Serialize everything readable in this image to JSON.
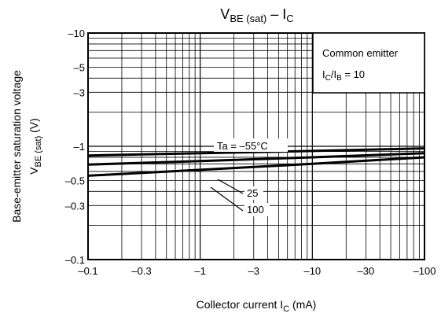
{
  "chart_data": {
    "type": "line",
    "title": {
      "main": "V",
      "sub1": "BE (sat)",
      "mid": " – I",
      "sub2": "C"
    },
    "xlabel": {
      "main": "Collector current   I",
      "sub": "C",
      "unit": "   (mA)"
    },
    "ylabel": {
      "line1": "Base-emitter saturation voltage",
      "main": "V",
      "sub": "BE (sat)",
      "unit": "   (V)"
    },
    "x_scale": "log",
    "y_scale": "log",
    "xlim": [
      -0.1,
      -100
    ],
    "ylim": [
      -0.1,
      -10
    ],
    "x_ticks": [
      {
        "value": -0.1,
        "label": "–0.1"
      },
      {
        "value": -0.3,
        "label": "–0.3"
      },
      {
        "value": -1,
        "label": "–1"
      },
      {
        "value": -3,
        "label": "–3"
      },
      {
        "value": -10,
        "label": "–10"
      },
      {
        "value": -30,
        "label": "–30"
      },
      {
        "value": -100,
        "label": "–100"
      }
    ],
    "y_ticks": [
      {
        "value": -0.1,
        "label": "–0.1"
      },
      {
        "value": -0.3,
        "label": "–0.3"
      },
      {
        "value": -0.5,
        "label": "–0.5"
      },
      {
        "value": -1,
        "label": "–1"
      },
      {
        "value": -3,
        "label": "–3"
      },
      {
        "value": -5,
        "label": "–5"
      },
      {
        "value": -10,
        "label": "–10"
      }
    ],
    "grid": true,
    "legend_box": {
      "line1": "Common emitter",
      "line2": {
        "a": "I",
        "a_sub": "C",
        "b": "/I",
        "b_sub": "B",
        "c": " = 10"
      }
    },
    "series": [
      {
        "name": "Ta = –55°C",
        "x": [
          -0.1,
          -1,
          -10,
          -100
        ],
        "y": [
          -0.83,
          -0.87,
          -0.91,
          -0.96
        ]
      },
      {
        "name": "25",
        "x": [
          -0.1,
          -1,
          -10,
          -100
        ],
        "y": [
          -0.69,
          -0.74,
          -0.8,
          -0.87
        ]
      },
      {
        "name": "100",
        "x": [
          -0.1,
          -1,
          -10,
          -100
        ],
        "y": [
          -0.55,
          -0.62,
          -0.7,
          -0.8
        ]
      }
    ],
    "annotations": [
      "Ta = –55°C",
      "25",
      "100"
    ]
  }
}
